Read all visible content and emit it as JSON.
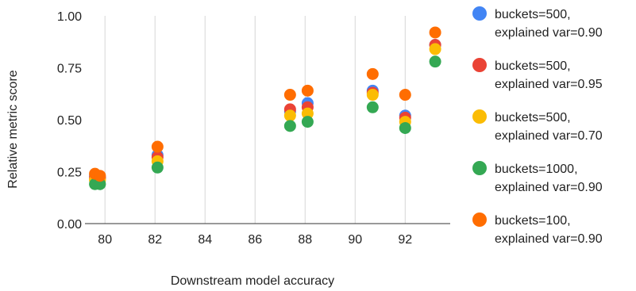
{
  "chart_data": {
    "type": "scatter",
    "title": "",
    "xlabel": "Downstream model accuracy",
    "ylabel": "Relative metric score",
    "xlim": [
      79.2,
      93.8
    ],
    "ylim": [
      0,
      1
    ],
    "xticks": [
      80,
      82,
      84,
      86,
      88,
      90,
      92
    ],
    "xtick_labels": [
      "80",
      "82",
      "84",
      "86",
      "88",
      "90",
      "92"
    ],
    "yticks": [
      0,
      0.25,
      0.5,
      0.75,
      1.0
    ],
    "ytick_labels": [
      "0.00",
      "0.25",
      "0.50",
      "0.75",
      "1.00"
    ],
    "grid": "vertical",
    "legend_position": "right",
    "series": [
      {
        "name": "buckets=500,\nexplained var=0.90",
        "color": "#4285F4",
        "points": [
          [
            79.6,
            0.23
          ],
          [
            79.8,
            0.22
          ],
          [
            82.1,
            0.33
          ],
          [
            87.4,
            0.54
          ],
          [
            88.1,
            0.58
          ],
          [
            90.7,
            0.64
          ],
          [
            92.0,
            0.52
          ],
          [
            93.2,
            0.86
          ]
        ]
      },
      {
        "name": "buckets=500,\nexplained var=0.95",
        "color": "#EA4335",
        "points": [
          [
            79.6,
            0.22
          ],
          [
            79.8,
            0.22
          ],
          [
            82.1,
            0.32
          ],
          [
            87.4,
            0.55
          ],
          [
            88.1,
            0.56
          ],
          [
            90.7,
            0.63
          ],
          [
            92.0,
            0.51
          ],
          [
            93.2,
            0.86
          ]
        ]
      },
      {
        "name": "buckets=500,\nexplained var=0.70",
        "color": "#FBBC04",
        "points": [
          [
            79.6,
            0.21
          ],
          [
            79.8,
            0.21
          ],
          [
            82.1,
            0.3
          ],
          [
            87.4,
            0.52
          ],
          [
            88.1,
            0.53
          ],
          [
            90.7,
            0.62
          ],
          [
            92.0,
            0.49
          ],
          [
            93.2,
            0.84
          ]
        ]
      },
      {
        "name": "buckets=1000,\nexplained var=0.90",
        "color": "#34A853",
        "points": [
          [
            79.6,
            0.19
          ],
          [
            79.8,
            0.19
          ],
          [
            82.1,
            0.27
          ],
          [
            87.4,
            0.47
          ],
          [
            88.1,
            0.49
          ],
          [
            90.7,
            0.56
          ],
          [
            92.0,
            0.46
          ],
          [
            93.2,
            0.78
          ]
        ]
      },
      {
        "name": "buckets=100,\nexplained var=0.90",
        "color": "#FF6D01",
        "points": [
          [
            79.6,
            0.24
          ],
          [
            79.8,
            0.23
          ],
          [
            82.1,
            0.37
          ],
          [
            87.4,
            0.62
          ],
          [
            88.1,
            0.64
          ],
          [
            90.7,
            0.72
          ],
          [
            92.0,
            0.62
          ],
          [
            93.2,
            0.92
          ]
        ]
      }
    ]
  }
}
